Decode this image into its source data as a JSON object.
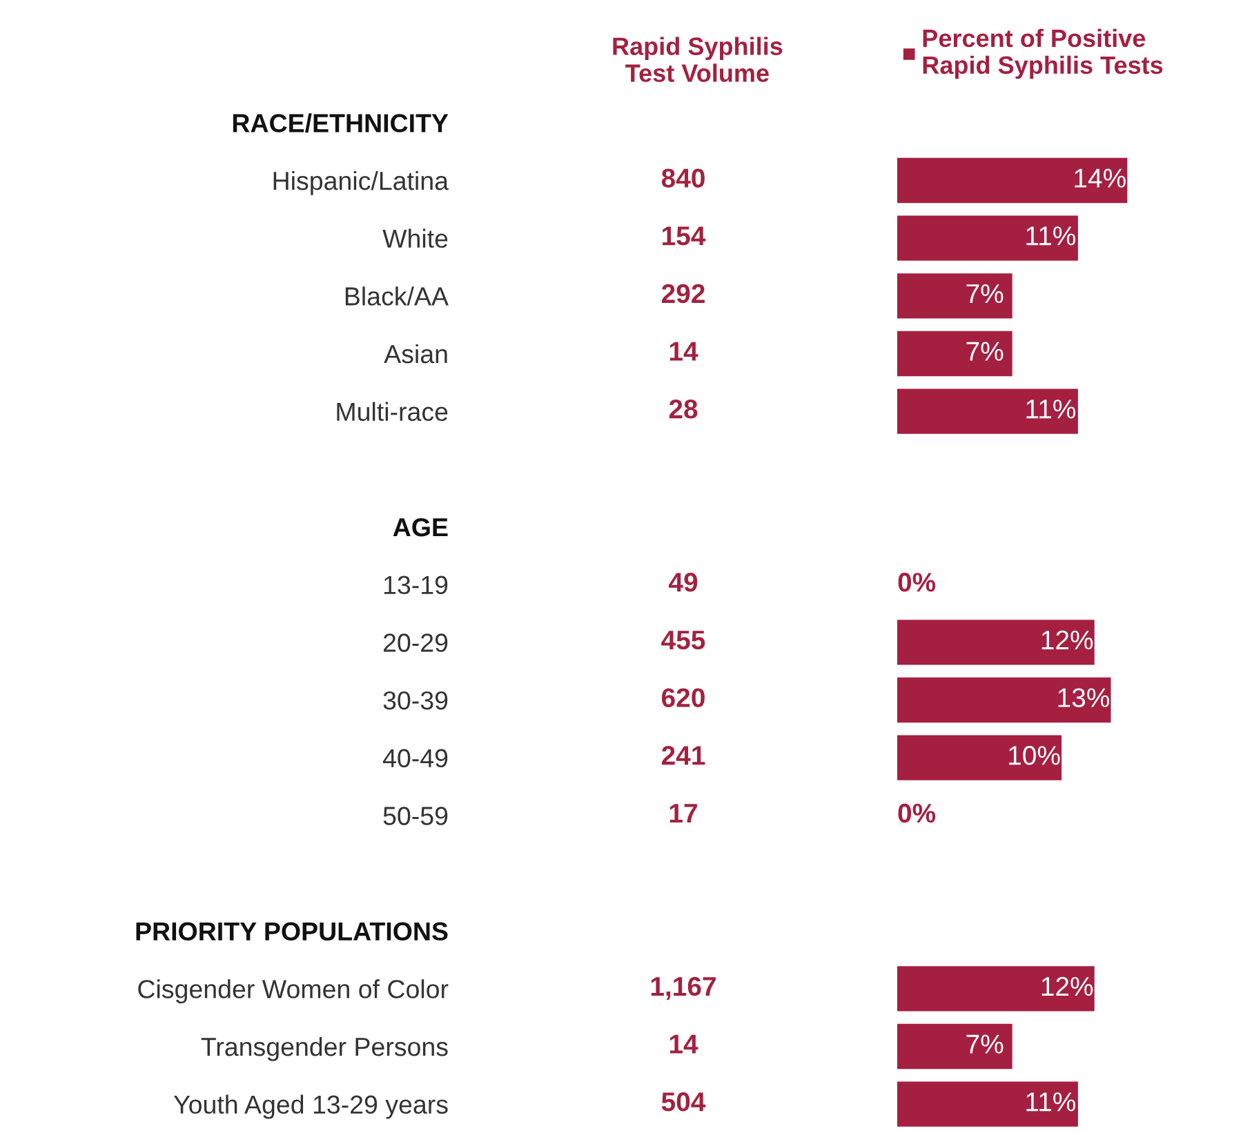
{
  "chart_data": {
    "type": "bar",
    "orientation": "horizontal",
    "tick_labels": "y",
    "legend": "top right",
    "categories": [
      "RACE/ETHNICITY",
      "Hispanic/Latina",
      "White",
      "Black/AA",
      "Asian",
      "Multi-race",
      null,
      "AGE",
      "13-19",
      "20-29",
      "30-39",
      "40-49",
      "50-59",
      null,
      "PRIORITY POPULATIONS",
      "Cisgender Women of Color",
      "Transgender Persons",
      "Youth Aged 13-29 years"
    ],
    "series": [
      {
        "name": "Percent of Positive\nRapid Syphilis Tests",
        "color": "#a51f41",
        "values": [
          null,
          14,
          11,
          7,
          7,
          11,
          null,
          null,
          0,
          12,
          13,
          10,
          0,
          null,
          null,
          12,
          7,
          11
        ],
        "value_labels": [
          null,
          "14%",
          "11%",
          "7%",
          "7%",
          "11%",
          null,
          null,
          "0%",
          "12%",
          "13%",
          "10%",
          "0%",
          null,
          null,
          "12%",
          "7%",
          "11%"
        ]
      }
    ],
    "annotations": [
      "Rapid Syphilis\nTest Volume",
      "840",
      "154",
      "292",
      "14",
      "28",
      "49",
      "455",
      "620",
      "241",
      "17",
      "1,167",
      "14",
      "504"
    ]
  }
}
